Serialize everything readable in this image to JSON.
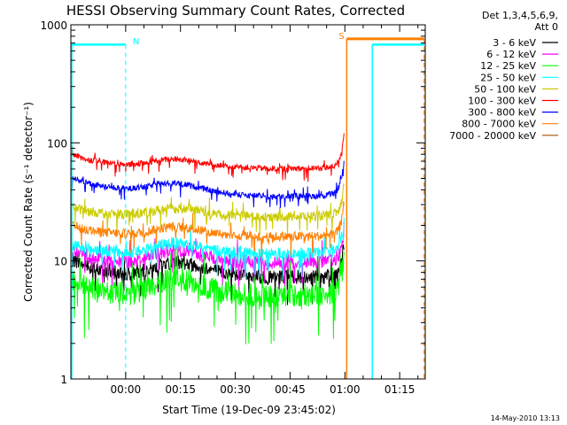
{
  "chart_data": {
    "type": "line",
    "title": "HESSI Observing Summary Count Rates, Corrected",
    "ylabel": "Corrected Count Rate (s⁻¹ detector⁻¹)",
    "xlabel": "Start Time (19-Dec-09 23:45:02)",
    "y_scale": "log",
    "ylim": [
      1,
      1000
    ],
    "y_ticks": [
      {
        "value": 1,
        "label": "1"
      },
      {
        "value": 10,
        "label": "10"
      },
      {
        "value": 100,
        "label": "100"
      },
      {
        "value": 1000,
        "label": "1000"
      }
    ],
    "x_unit": "minutes since 23:45:02",
    "xlim": [
      0,
      97
    ],
    "x_ticks": [
      {
        "t": 15,
        "label": "00:00"
      },
      {
        "t": 30,
        "label": "00:15"
      },
      {
        "t": 45,
        "label": "00:30"
      },
      {
        "t": 60,
        "label": "00:45"
      },
      {
        "t": 75,
        "label": "01:00"
      },
      {
        "t": 90,
        "label": "01:15"
      }
    ],
    "legend": {
      "header_line1": "Det 1,3,4,5,6,9,",
      "header_line2": "Att 0",
      "placement": "right"
    },
    "series": [
      {
        "name": "3 - 6 keV",
        "color": "#000000",
        "x": [
          0,
          4,
          8,
          12,
          16,
          20,
          24,
          28,
          32,
          36,
          40,
          44,
          48,
          52,
          56,
          60,
          64,
          68,
          72,
          73,
          74,
          74.8
        ],
        "values": [
          10.5,
          9.0,
          8.3,
          8.0,
          7.8,
          8.2,
          9.2,
          9.8,
          9.6,
          9.0,
          8.2,
          7.7,
          7.4,
          7.2,
          7.2,
          7.3,
          7.3,
          7.2,
          7.5,
          8.0,
          9.5,
          14
        ],
        "noise": 0.06
      },
      {
        "name": "6 - 12 keV",
        "color": "#ff00ff",
        "x": [
          0,
          4,
          8,
          12,
          16,
          20,
          24,
          28,
          32,
          36,
          40,
          44,
          48,
          52,
          56,
          60,
          64,
          68,
          72,
          73,
          74,
          74.8
        ],
        "values": [
          12.0,
          10.8,
          10.3,
          10.0,
          9.9,
          10.5,
          11.8,
          12.5,
          12.0,
          11.2,
          10.4,
          10.0,
          9.8,
          9.6,
          9.6,
          9.7,
          9.8,
          9.8,
          10.2,
          10.8,
          12.5,
          18
        ],
        "noise": 0.06
      },
      {
        "name": "12 - 25 keV",
        "color": "#00ff00",
        "x": [
          0,
          4,
          8,
          12,
          16,
          20,
          24,
          28,
          32,
          36,
          40,
          44,
          48,
          52,
          56,
          60,
          64,
          68,
          72,
          73,
          74,
          74.8
        ],
        "values": [
          7.0,
          6.0,
          5.5,
          5.3,
          5.2,
          5.5,
          6.5,
          7.0,
          6.8,
          6.2,
          5.6,
          5.3,
          5.1,
          5.0,
          5.0,
          5.1,
          5.1,
          5.1,
          5.4,
          6.0,
          7.5,
          11
        ],
        "noise": 0.1
      },
      {
        "name": "25 - 50 keV",
        "color": "#00ffff",
        "x": [
          0,
          4,
          8,
          12,
          16,
          20,
          24,
          28,
          32,
          36,
          40,
          44,
          48,
          52,
          56,
          60,
          64,
          68,
          72,
          73,
          74,
          74.8
        ],
        "values": [
          14.0,
          12.8,
          12.3,
          12.0,
          11.8,
          12.3,
          13.5,
          14.2,
          13.8,
          13.0,
          12.2,
          11.8,
          11.6,
          11.4,
          11.4,
          11.5,
          11.6,
          11.6,
          12.0,
          12.8,
          15,
          22
        ],
        "noise": 0.05
      },
      {
        "name": "50 - 100 keV",
        "color": "#cccc00",
        "x": [
          0,
          4,
          8,
          12,
          16,
          20,
          24,
          28,
          32,
          36,
          40,
          44,
          48,
          52,
          56,
          60,
          64,
          68,
          72,
          73,
          74,
          74.8
        ],
        "values": [
          29,
          26.5,
          25.5,
          25,
          24.8,
          25.5,
          27,
          28,
          27.5,
          26.5,
          25.2,
          24.5,
          24,
          23.7,
          23.6,
          23.8,
          24,
          24,
          24.8,
          26,
          30,
          45
        ],
        "noise": 0.04
      },
      {
        "name": "100 - 300 keV",
        "color": "#ff0000",
        "x": [
          0,
          4,
          8,
          12,
          16,
          20,
          24,
          28,
          32,
          36,
          40,
          44,
          48,
          52,
          56,
          60,
          64,
          68,
          72,
          73,
          74,
          74.8
        ],
        "values": [
          80,
          73,
          69,
          67,
          66,
          67.5,
          71,
          73,
          71,
          68,
          65,
          63,
          62,
          61,
          60.5,
          60.5,
          61,
          61,
          63,
          68,
          80,
          125
        ],
        "noise": 0.025
      },
      {
        "name": "300 - 800 keV",
        "color": "#0000ff",
        "x": [
          0,
          4,
          8,
          12,
          16,
          20,
          24,
          28,
          32,
          36,
          40,
          44,
          48,
          52,
          56,
          60,
          64,
          68,
          72,
          73,
          74,
          74.8
        ],
        "values": [
          52,
          46,
          43,
          41.5,
          41,
          42,
          45,
          46,
          44,
          41,
          38.5,
          37,
          36,
          35.5,
          35.2,
          35.3,
          35.5,
          35.5,
          37,
          40,
          48,
          70
        ],
        "noise": 0.025
      },
      {
        "name": "800 - 7000 keV",
        "color": "#ff8000",
        "x": [
          0,
          4,
          8,
          12,
          16,
          20,
          24,
          28,
          32,
          36,
          40,
          44,
          48,
          52,
          56,
          60,
          64,
          68,
          72,
          73,
          74,
          74.8
        ],
        "values": [
          20,
          18.3,
          17.5,
          17.2,
          17.0,
          17.5,
          18.8,
          19.5,
          19,
          18,
          17.2,
          16.6,
          16.3,
          16.1,
          16.0,
          16.1,
          16.2,
          16.2,
          16.8,
          17.8,
          21,
          32
        ],
        "noise": 0.04
      },
      {
        "name": "7000 - 20000 keV",
        "color": "#a05000",
        "x": [],
        "values": []
      }
    ],
    "annotations": [
      {
        "label": "N",
        "color": "#00ffff"
      },
      {
        "label": "S",
        "color": "#ff8000"
      }
    ]
  },
  "footer_date": "14-May-2010 13:13"
}
